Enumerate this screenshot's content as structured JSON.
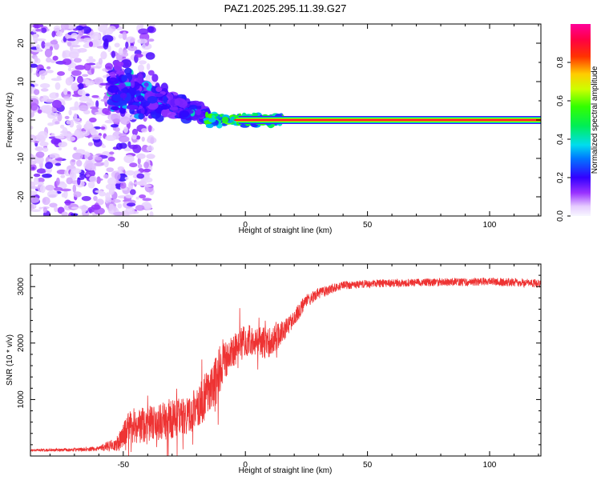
{
  "title": "PAZ1.2025.295.11.39.G27",
  "colors": {
    "snr_line": "#ee3333",
    "frame": "#000000",
    "scatter": "#8a2be2",
    "ridge": "#ff0000"
  },
  "chart_data": [
    {
      "id": "spectrogram",
      "type": "heatmap",
      "xlabel": "Height of straight line (km)",
      "ylabel": "Frequency (Hz)",
      "xlim": [
        -88,
        121
      ],
      "ylim": [
        -25,
        25
      ],
      "x_ticks": [
        -50,
        0,
        50,
        100
      ],
      "y_ticks": [
        -20,
        -10,
        0,
        10,
        20
      ],
      "colorbar": {
        "label": "Normalized spectral amplitude",
        "range": [
          0.0,
          1.0
        ],
        "ticks": [
          "0.0",
          "0.2",
          "0.4",
          "0.6",
          "0.8"
        ],
        "tick_values": [
          0.0,
          0.2,
          0.4,
          0.6,
          0.8
        ]
      },
      "features": {
        "ridge_frequency_hz": 0,
        "ridge_start_km": 15,
        "diffuse_region_km": [
          -88,
          -38
        ],
        "converging_region_km": [
          -55,
          -15
        ]
      }
    },
    {
      "id": "snr",
      "type": "line",
      "xlabel": "Height of straight line (km)",
      "ylabel": "SNR (10 * v/v)",
      "xlim": [
        -88,
        121
      ],
      "ylim": [
        0,
        3400
      ],
      "x_ticks": [
        -50,
        0,
        50,
        100
      ],
      "y_ticks": [
        1000,
        2000,
        3000
      ],
      "series": [
        {
          "name": "SNR",
          "x": [
            -88,
            -70,
            -60,
            -52,
            -48,
            -40,
            -30,
            -22,
            -18,
            -14,
            -12,
            -10,
            -5,
            0,
            5,
            10,
            15,
            20,
            25,
            30,
            35,
            40,
            50,
            60,
            70,
            80,
            90,
            100,
            110,
            121
          ],
          "y": [
            100,
            110,
            130,
            230,
            480,
            560,
            650,
            760,
            950,
            1250,
            1350,
            1620,
            1860,
            2040,
            2030,
            2000,
            2170,
            2450,
            2750,
            2880,
            2960,
            3020,
            3050,
            3060,
            3070,
            3080,
            3080,
            3090,
            3070,
            3060
          ],
          "noise": [
            20,
            30,
            40,
            140,
            300,
            320,
            340,
            360,
            380,
            480,
            500,
            380,
            280,
            300,
            280,
            300,
            200,
            140,
            120,
            100,
            90,
            70,
            70,
            70,
            70,
            70,
            70,
            70,
            80,
            80
          ]
        }
      ]
    }
  ]
}
